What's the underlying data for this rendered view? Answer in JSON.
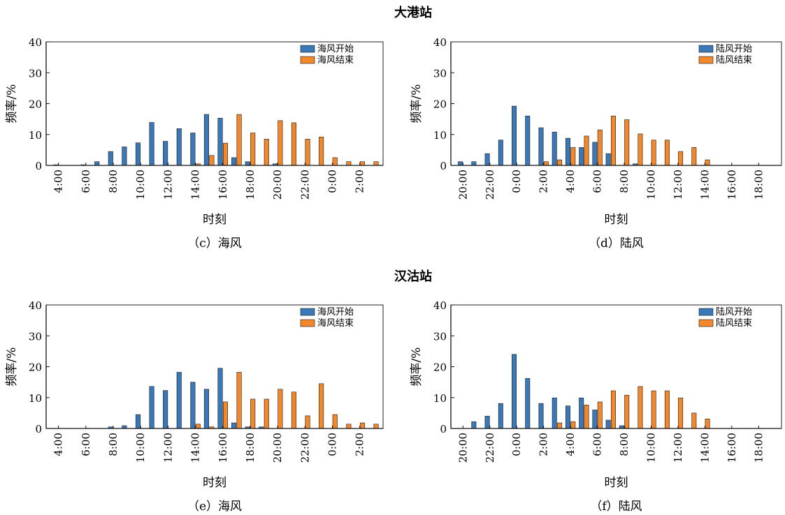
{
  "stations": [
    "大港站",
    "汉沽站"
  ],
  "colors": {
    "start": "#3a78b8",
    "end": "#f2872c"
  },
  "chart_data": [
    {
      "type": "bar",
      "caption": "（c）海风",
      "xlabel": "时刻",
      "ylabel": "频率/%",
      "ylim": [
        0,
        40
      ],
      "yticks": [
        "0",
        "10",
        "20",
        "30",
        "40"
      ],
      "xtick_labels": [
        "4:00",
        "6:00",
        "8:00",
        "10:00",
        "12:00",
        "14:00",
        "16:00",
        "18:00",
        "20:00",
        "22:00",
        "0:00",
        "2:00"
      ],
      "categories": [
        "4:00",
        "5:00",
        "6:00",
        "7:00",
        "8:00",
        "9:00",
        "10:00",
        "11:00",
        "12:00",
        "13:00",
        "14:00",
        "15:00",
        "16:00",
        "17:00",
        "18:00",
        "19:00",
        "20:00",
        "21:00",
        "22:00",
        "23:00",
        "0:00",
        "1:00",
        "2:00",
        "3:00"
      ],
      "series": [
        {
          "name": "海风开始",
          "values": [
            0.2,
            0,
            0.2,
            1.2,
            4.5,
            6.0,
            7.3,
            13.9,
            7.8,
            11.9,
            10.5,
            16.5,
            15.3,
            2.5,
            1.2,
            0,
            0.5,
            0,
            0,
            0,
            0,
            0,
            0,
            0
          ]
        },
        {
          "name": "海风结束",
          "values": [
            0,
            0,
            0,
            0,
            0,
            0,
            0,
            0,
            0,
            0,
            0.5,
            3.2,
            7.2,
            16.5,
            10.5,
            8.5,
            14.5,
            13.8,
            8.5,
            9.2,
            2.5,
            1.2,
            1.2,
            1.2
          ]
        }
      ]
    },
    {
      "type": "bar",
      "caption": "（d）陆风",
      "xlabel": "时刻",
      "ylabel": "频率/%",
      "ylim": [
        0,
        40
      ],
      "yticks": [
        "0",
        "10",
        "20",
        "30",
        "40"
      ],
      "xtick_labels": [
        "20:00",
        "22:00",
        "0:00",
        "2:00",
        "4:00",
        "6:00",
        "8:00",
        "10:00",
        "12:00",
        "14:00",
        "16:00",
        "18:00"
      ],
      "categories": [
        "20:00",
        "21:00",
        "22:00",
        "23:00",
        "0:00",
        "1:00",
        "2:00",
        "3:00",
        "4:00",
        "5:00",
        "6:00",
        "7:00",
        "8:00",
        "9:00",
        "10:00",
        "11:00",
        "12:00",
        "13:00",
        "14:00",
        "15:00",
        "16:00",
        "17:00",
        "18:00",
        "19:00"
      ],
      "series": [
        {
          "name": "陆风开始",
          "values": [
            1.2,
            1.2,
            3.8,
            8.2,
            19.2,
            16.0,
            12.2,
            10.8,
            8.8,
            5.8,
            7.5,
            3.8,
            0,
            0.5,
            0,
            0,
            0,
            0,
            0,
            0,
            0,
            0,
            0,
            0
          ]
        },
        {
          "name": "陆风结束",
          "values": [
            0,
            0,
            0,
            0,
            0,
            0,
            1.2,
            1.8,
            5.8,
            9.5,
            11.5,
            16.0,
            14.8,
            10.2,
            8.2,
            8.2,
            4.5,
            5.8,
            1.8,
            0,
            0,
            0,
            0,
            0
          ]
        }
      ]
    },
    {
      "type": "bar",
      "caption": "（e）海风",
      "xlabel": "时刻",
      "ylabel": "频率/%",
      "ylim": [
        0,
        40
      ],
      "yticks": [
        "0",
        "10",
        "20",
        "30",
        "40"
      ],
      "xtick_labels": [
        "4:00",
        "6:00",
        "8:00",
        "10:00",
        "12:00",
        "14:00",
        "16:00",
        "18:00",
        "20:00",
        "22:00",
        "0:00",
        "2:00"
      ],
      "categories": [
        "4:00",
        "5:00",
        "6:00",
        "7:00",
        "8:00",
        "9:00",
        "10:00",
        "11:00",
        "12:00",
        "13:00",
        "14:00",
        "15:00",
        "16:00",
        "17:00",
        "18:00",
        "19:00",
        "20:00",
        "21:00",
        "22:00",
        "23:00",
        "0:00",
        "1:00",
        "2:00",
        "3:00"
      ],
      "series": [
        {
          "name": "海风开始",
          "values": [
            0,
            0,
            0,
            0,
            0.5,
            0.9,
            4.5,
            13.6,
            12.3,
            18.2,
            15.0,
            12.7,
            19.5,
            1.8,
            0.5,
            0.5,
            0,
            0,
            0,
            0,
            0,
            0,
            0,
            0
          ]
        },
        {
          "name": "海风结束",
          "values": [
            0,
            0,
            0,
            0,
            0,
            0,
            0,
            0,
            0,
            0,
            1.4,
            0.5,
            8.6,
            18.2,
            9.5,
            9.5,
            12.7,
            11.8,
            4.1,
            14.5,
            4.5,
            1.4,
            1.8,
            1.4
          ]
        }
      ]
    },
    {
      "type": "bar",
      "caption": "（f）陆风",
      "xlabel": "时刻",
      "ylabel": "频率/%",
      "ylim": [
        0,
        40
      ],
      "yticks": [
        "0",
        "10",
        "20",
        "30",
        "40"
      ],
      "xtick_labels": [
        "20:00",
        "22:00",
        "0:00",
        "2:00",
        "4:00",
        "6:00",
        "8:00",
        "10:00",
        "12:00",
        "14:00",
        "16:00",
        "18:00"
      ],
      "categories": [
        "20:00",
        "21:00",
        "22:00",
        "23:00",
        "0:00",
        "1:00",
        "2:00",
        "3:00",
        "4:00",
        "5:00",
        "6:00",
        "7:00",
        "8:00",
        "9:00",
        "10:00",
        "11:00",
        "12:00",
        "13:00",
        "14:00",
        "15:00",
        "16:00",
        "17:00",
        "18:00",
        "19:00"
      ],
      "series": [
        {
          "name": "陆风开始",
          "values": [
            0,
            2.2,
            4.0,
            8.1,
            24.0,
            16.2,
            8.1,
            9.9,
            7.3,
            9.9,
            6.0,
            2.7,
            0.9,
            0,
            0,
            0,
            0,
            0,
            0,
            0,
            0,
            0,
            0,
            0
          ]
        },
        {
          "name": "陆风结束",
          "values": [
            0,
            0,
            0,
            0,
            0,
            0,
            0,
            1.8,
            2.2,
            7.6,
            8.6,
            12.2,
            10.8,
            13.6,
            12.2,
            12.2,
            9.9,
            5.0,
            3.1,
            0,
            0,
            0,
            0,
            0
          ]
        }
      ]
    }
  ]
}
